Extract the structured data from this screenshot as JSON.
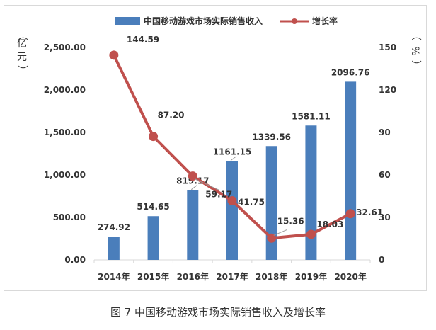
{
  "caption": "图 7  中国移动游戏市场实际销售收入及增长率",
  "colors": {
    "bar": "#4a7ebb",
    "line": "#c0504d",
    "grid": "#d9d9d9",
    "text": "#333333"
  },
  "chart_data": {
    "type": "bar",
    "categories": [
      "2014年",
      "2015年",
      "2016年",
      "2017年",
      "2018年",
      "2019年",
      "2020年"
    ],
    "series": [
      {
        "name": "中国移动游戏市场实际销售收入",
        "type": "bar",
        "axis": "left",
        "values": [
          274.92,
          514.65,
          819.17,
          1161.15,
          1339.56,
          1581.11,
          2096.76
        ],
        "labels": [
          "274.92",
          "514.65",
          "819.17",
          "1161.15",
          "1339.56",
          "1581.11",
          "2096.76"
        ]
      },
      {
        "name": "增长率",
        "type": "line",
        "axis": "right",
        "values": [
          144.59,
          87.2,
          59.17,
          41.75,
          15.36,
          18.03,
          32.61
        ],
        "labels": [
          "144.59",
          "87.20",
          "59.17",
          "41.75",
          "15.36",
          "18.03",
          "32.61"
        ]
      }
    ],
    "ylabel_left": "亿元",
    "ylabel_right": "%",
    "ylim_left": [
      0,
      2500
    ],
    "ylim_right": [
      0,
      150
    ],
    "yticks_left": [
      "0.00",
      "500.00",
      "1,000.00",
      "1,500.00",
      "2,000.00",
      "2,500.00"
    ],
    "yticks_right": [
      "0",
      "30",
      "60",
      "90",
      "120",
      "150"
    ],
    "legend_position": "top",
    "grid": false
  }
}
